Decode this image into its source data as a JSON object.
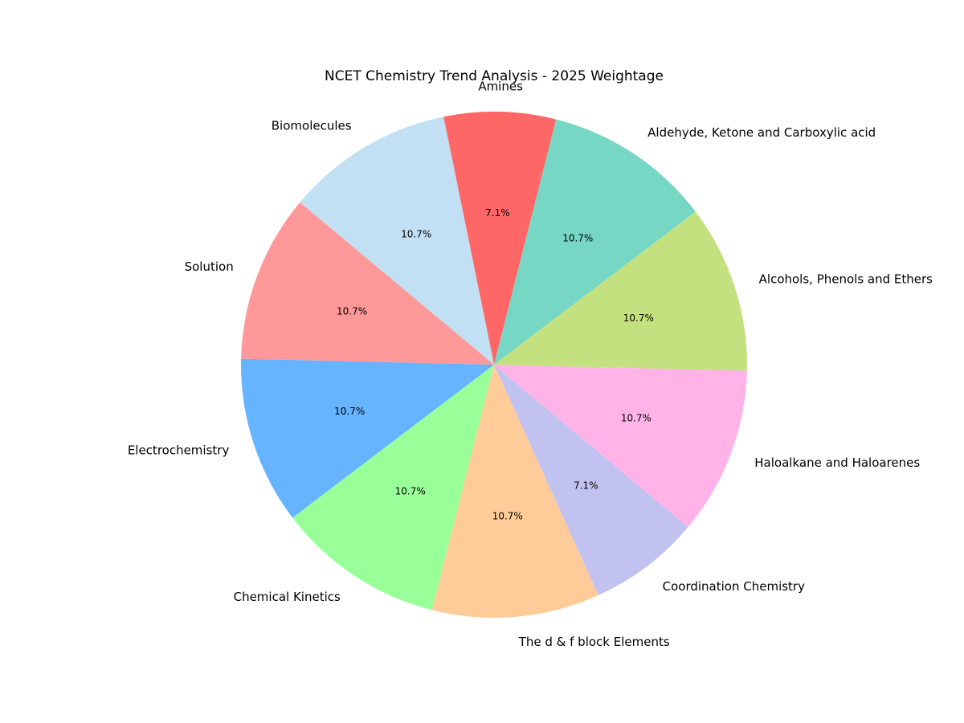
{
  "chart_data": {
    "type": "pie",
    "title": "NCET Chemistry Trend Analysis - 2025 Weightage",
    "start_angle_deg": 75.8,
    "direction": "counterclockwise",
    "center": [
      615,
      454
    ],
    "radius": 315,
    "categories": [
      "Amines",
      "Biomolecules",
      "Solution",
      "Electrochemistry",
      "Chemical Kinetics",
      "The d & f block Elements",
      "Coordination Chemistry",
      "Haloalkane and Haloarenes",
      "Alcohols, Phenols and Ethers",
      "Aldehyde, Ketone and Carboxylic acid"
    ],
    "values": [
      2,
      3,
      3,
      3,
      3,
      3,
      2,
      3,
      3,
      3
    ],
    "percent_labels": [
      "7.1%",
      "10.7%",
      "10.7%",
      "10.7%",
      "10.7%",
      "10.7%",
      "7.1%",
      "10.7%",
      "10.7%",
      "10.7%"
    ],
    "colors": [
      "#ff6666",
      "#c2e0f4",
      "#ff9999",
      "#66b3ff",
      "#99ff99",
      "#ffcc99",
      "#c2c2f0",
      "#ffb3e6",
      "#c4e17f",
      "#76d7c4"
    ],
    "legend": null
  }
}
